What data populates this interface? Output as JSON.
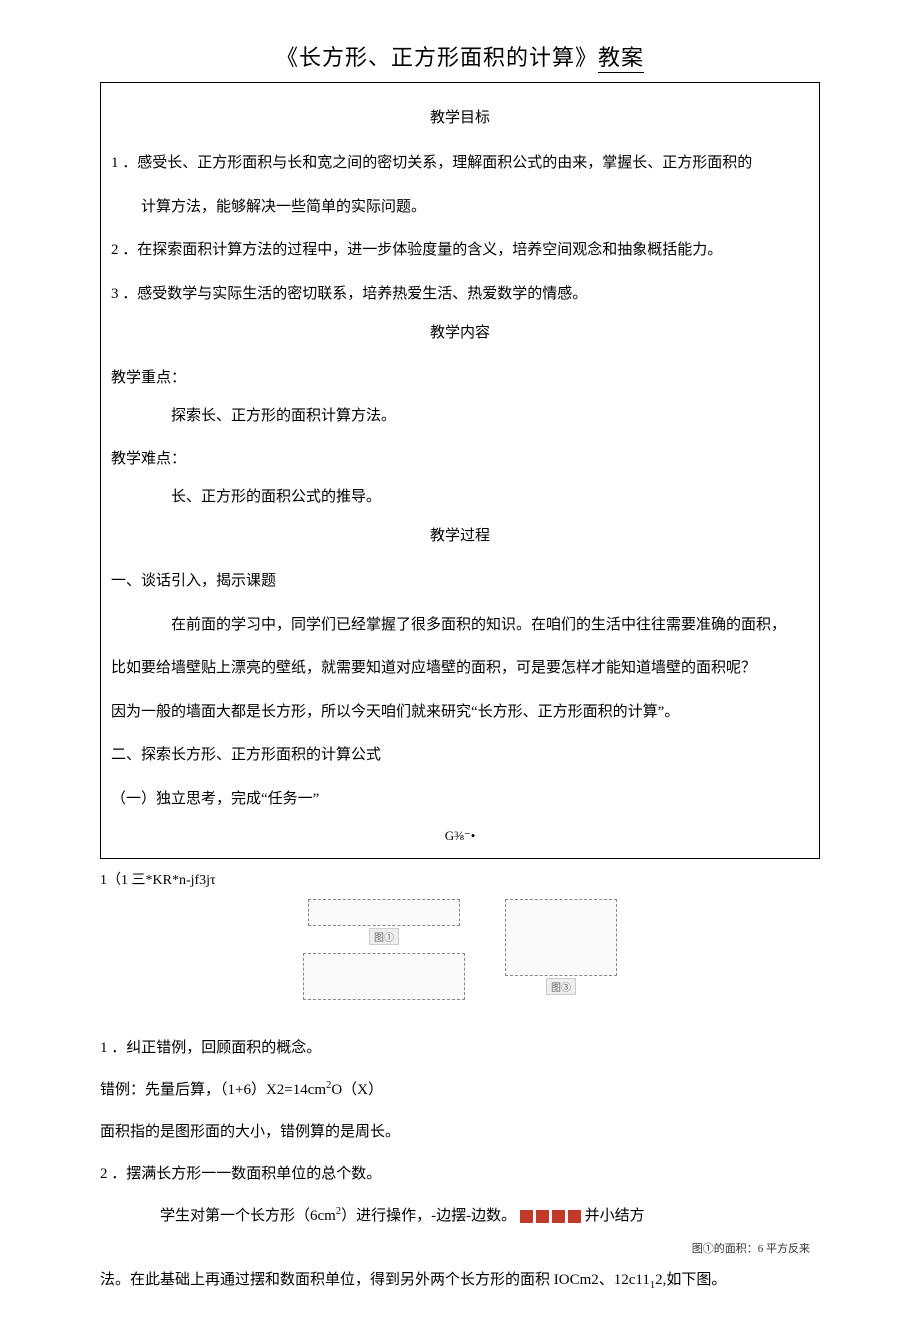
{
  "title_a": "《长方形、正方形面积的计算》",
  "title_b": "教案",
  "box": {
    "h_goal": "教学目标",
    "goal1": "1 ．感受长、正方形面积与长和宽之间的密切关系，理解面积公式的由来，掌握长、正方形面积的",
    "goal1b": "计算方法，能够解决一些简单的实际问题。",
    "goal2": "2 ．在探索面积计算方法的过程中，进一步体验度量的含义，培养空间观念和抽象概括能力。",
    "goal3": "3 ．感受数学与实际生活的密切联系，培养热爱生活、热爱数学的情感。",
    "h_content": "教学内容",
    "key_label": "教学重点：",
    "key_text": "探索长、正方形的面积计算方法。",
    "diff_label": "教学难点：",
    "diff_text": "长、正方形的面积公式的推导。",
    "h_process": "教学过程",
    "p1": "一、谈话引入，揭示课题",
    "p2": "在前面的学习中，同学们已经掌握了很多面积的知识。在咱们的生活中往往需要准确的面积，",
    "p3": "比如要给墙壁贴上漂亮的壁纸，就需要知道对应墙壁的面积，可是要怎样才能知道墙壁的面积呢？",
    "p4": "因为一般的墙面大都是长方形，所以今天咱们就来研究“长方形、正方形面积的计算”。",
    "p5": "二、探索长方形、正方形面积的计算公式",
    "p6": "（一）独立思考，完成“任务一”",
    "frag_center": "G⅜⁻•"
  },
  "frag_line": "1（1 三*KR*n-jf3jτ",
  "shapes": {
    "label_a": "图①",
    "label_c": "图③"
  },
  "body": {
    "b1": "1 ．纠正错例，回顾面积的概念。",
    "b2_a": "错例：先量后算，（1+6）X2=14cm",
    "b2_b": "O（X）",
    "b3": "面积指的是图形面的大小，错例算的是周长。",
    "b4": "2 ．摆满长方形一一数面积单位的总个数。",
    "b5_a": "学生对第一个长方形（6cm",
    "b5_b": "）进行操作，-边摆-边数。",
    "b5_c": "并小结方",
    "side": "图①的面积：6 平方反来",
    "b6_a": "法。在此基础上再通过摆和数面积单位，得到另外两个长方形的面积 IOCm2、12c11",
    "b6_b": "2,如下图。"
  },
  "colors": {
    "square": "#c0392b",
    "rect_border": "#888888",
    "rect_fill": "#fafafa",
    "label_bg": "#eeeeee",
    "label_border": "#cccccc"
  }
}
